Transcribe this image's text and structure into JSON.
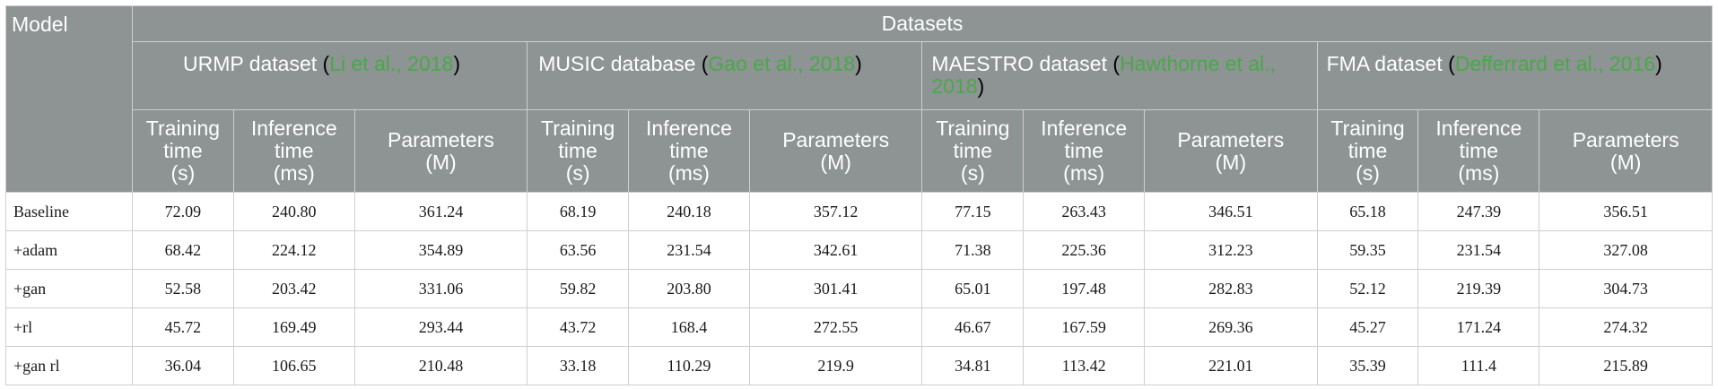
{
  "header": {
    "model": "Model",
    "datasets": "Datasets",
    "groups": [
      {
        "name": "URMP dataset",
        "open": "(",
        "cite": "Li et al., 2018",
        "close": ")"
      },
      {
        "name": "MUSIC database",
        "open": "(",
        "cite": "Gao et al., 2018",
        "close": ")"
      },
      {
        "name": "MAESTRO dataset",
        "open": "(",
        "cite": "Hawthorne et al., 2018",
        "close": ")"
      },
      {
        "name": "FMA dataset",
        "open": "(",
        "cite": "Defferrard et al., 2016",
        "close": ")"
      }
    ],
    "metrics": [
      [
        "Training",
        "time",
        "(s)"
      ],
      [
        "Inference",
        "time",
        "(ms)"
      ],
      [
        "Parameters",
        "(M)"
      ]
    ]
  },
  "rows": [
    {
      "model": "Baseline",
      "values": [
        "72.09",
        "240.80",
        "361.24",
        "68.19",
        "240.18",
        "357.12",
        "77.15",
        "263.43",
        "346.51",
        "65.18",
        "247.39",
        "356.51"
      ]
    },
    {
      "model": "+adam",
      "values": [
        "68.42",
        "224.12",
        "354.89",
        "63.56",
        "231.54",
        "342.61",
        "71.38",
        "225.36",
        "312.23",
        "59.35",
        "231.54",
        "327.08"
      ]
    },
    {
      "model": "+gan",
      "values": [
        "52.58",
        "203.42",
        "331.06",
        "59.82",
        "203.80",
        "301.41",
        "65.01",
        "197.48",
        "282.83",
        "52.12",
        "219.39",
        "304.73"
      ]
    },
    {
      "model": "+rl",
      "values": [
        "45.72",
        "169.49",
        "293.44",
        "43.72",
        "168.4",
        "272.55",
        "46.67",
        "167.59",
        "269.36",
        "45.27",
        "171.24",
        "274.32"
      ]
    },
    {
      "model": "+gan rl",
      "values": [
        "36.04",
        "106.65",
        "210.48",
        "33.18",
        "110.29",
        "219.9",
        "34.81",
        "113.42",
        "221.01",
        "35.39",
        "111.4",
        "215.89"
      ]
    }
  ]
}
